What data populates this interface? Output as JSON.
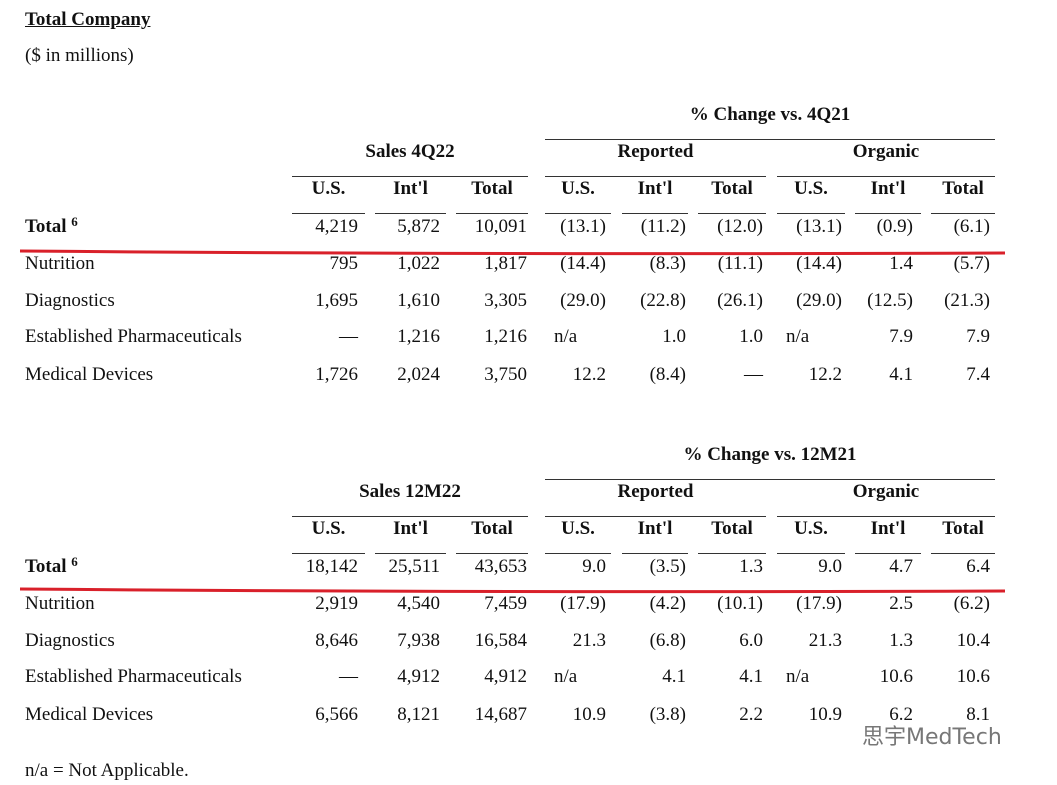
{
  "title": "Total Company",
  "subtitle": "($ in millions)",
  "tables": [
    {
      "change_header": "% Change vs. 4Q21",
      "sales_header": "Sales 4Q22",
      "reported_header": "Reported",
      "organic_header": "Organic",
      "columns": [
        "U.S.",
        "Int'l",
        "Total",
        "U.S.",
        "Int'l",
        "Total",
        "U.S.",
        "Int'l",
        "Total"
      ],
      "rows": [
        {
          "label": "Total",
          "note": "6",
          "values": [
            "4,219",
            "5,872",
            "10,091",
            "(13.1)",
            "(11.2)",
            "(12.0)",
            "(13.1)",
            "(0.9)",
            "(6.1)"
          ]
        },
        {
          "label": "Nutrition",
          "values": [
            "795",
            "1,022",
            "1,817",
            "(14.4)",
            "(8.3)",
            "(11.1)",
            "(14.4)",
            "1.4",
            "(5.7)"
          ]
        },
        {
          "label": "Diagnostics",
          "values": [
            "1,695",
            "1,610",
            "3,305",
            "(29.0)",
            "(22.8)",
            "(26.1)",
            "(29.0)",
            "(12.5)",
            "(21.3)"
          ]
        },
        {
          "label": "Established Pharmaceuticals",
          "values": [
            "—",
            "1,216",
            "1,216",
            "n/a",
            "1.0",
            "1.0",
            "n/a",
            "7.9",
            "7.9"
          ]
        },
        {
          "label": "Medical Devices",
          "values": [
            "1,726",
            "2,024",
            "3,750",
            "12.2",
            "(8.4)",
            "—",
            "12.2",
            "4.1",
            "7.4"
          ]
        }
      ]
    },
    {
      "change_header": "% Change vs. 12M21",
      "sales_header": "Sales 12M22",
      "reported_header": "Reported",
      "organic_header": "Organic",
      "columns": [
        "U.S.",
        "Int'l",
        "Total",
        "U.S.",
        "Int'l",
        "Total",
        "U.S.",
        "Int'l",
        "Total"
      ],
      "rows": [
        {
          "label": "Total",
          "note": "6",
          "values": [
            "18,142",
            "25,511",
            "43,653",
            "9.0",
            "(3.5)",
            "1.3",
            "9.0",
            "4.7",
            "6.4"
          ]
        },
        {
          "label": "Nutrition",
          "values": [
            "2,919",
            "4,540",
            "7,459",
            "(17.9)",
            "(4.2)",
            "(10.1)",
            "(17.9)",
            "2.5",
            "(6.2)"
          ]
        },
        {
          "label": "Diagnostics",
          "values": [
            "8,646",
            "7,938",
            "16,584",
            "21.3",
            "(6.8)",
            "6.0",
            "21.3",
            "1.3",
            "10.4"
          ]
        },
        {
          "label": "Established Pharmaceuticals",
          "values": [
            "—",
            "4,912",
            "4,912",
            "n/a",
            "4.1",
            "4.1",
            "n/a",
            "10.6",
            "10.6"
          ]
        },
        {
          "label": "Medical Devices",
          "values": [
            "6,566",
            "8,121",
            "14,687",
            "10.9",
            "(3.8)",
            "2.2",
            "10.9",
            "6.2",
            "8.1"
          ]
        }
      ]
    }
  ],
  "footnote": "n/a = Not Applicable.",
  "watermark": "思宇MedTech"
}
